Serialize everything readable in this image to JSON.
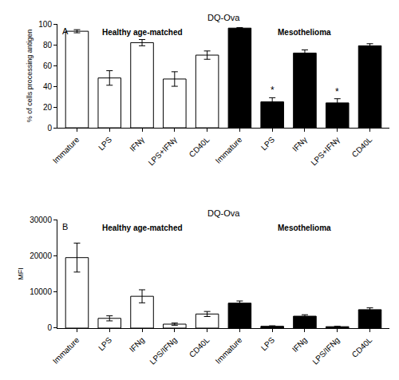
{
  "chart_data": [
    {
      "type": "bar",
      "title": "DQ-Ova",
      "panel_label": "A",
      "y_label": "% of cells processing antigen",
      "categories": [
        "Immature",
        "LPS",
        "IFNγ",
        "LPS+IFNγ",
        "CD40L",
        "Immature",
        "LPS",
        "IFNγ",
        "LPS+IFNγ",
        "CD40L"
      ],
      "values": [
        93,
        48,
        82,
        47,
        70,
        96,
        25,
        72,
        24,
        79
      ],
      "errors": [
        1.5,
        7,
        3,
        7,
        4,
        0.5,
        4,
        3,
        4,
        2
      ],
      "colors": [
        "#ffffff",
        "#ffffff",
        "#ffffff",
        "#ffffff",
        "#ffffff",
        "#000000",
        "#000000",
        "#000000",
        "#000000",
        "#000000"
      ],
      "groups": [
        {
          "label": "Healthy age-matched",
          "start": 0,
          "end": 4
        },
        {
          "label": "Mesothelioma",
          "start": 5,
          "end": 9
        }
      ],
      "annotations": [
        {
          "text": "*",
          "category": 6
        },
        {
          "text": "*",
          "category": 8
        }
      ],
      "ylim": [
        0,
        100
      ],
      "yticks": [
        0,
        20,
        40,
        60,
        80,
        100
      ],
      "grid": false
    },
    {
      "type": "bar",
      "title": "DQ-Ova",
      "panel_label": "B",
      "y_label": "MFI",
      "categories": [
        "Immature",
        "LPS",
        "IFNg",
        "LPS/IFNg",
        "CD40L",
        "Immature",
        "LPS",
        "IFNg",
        "LPS/IFNg",
        "CD40L"
      ],
      "values": [
        19500,
        2700,
        8800,
        1100,
        3900,
        6900,
        500,
        3300,
        400,
        5100
      ],
      "errors": [
        4000,
        700,
        1800,
        300,
        700,
        600,
        150,
        400,
        100,
        500
      ],
      "colors": [
        "#ffffff",
        "#ffffff",
        "#ffffff",
        "#ffffff",
        "#ffffff",
        "#000000",
        "#000000",
        "#000000",
        "#000000",
        "#000000"
      ],
      "groups": [
        {
          "label": "Healthy age-matched",
          "start": 0,
          "end": 4
        },
        {
          "label": "Mesothelioma",
          "start": 5,
          "end": 9
        }
      ],
      "ylim": [
        0,
        30000
      ],
      "yticks": [
        0,
        10000,
        20000,
        30000
      ],
      "grid": false
    }
  ]
}
